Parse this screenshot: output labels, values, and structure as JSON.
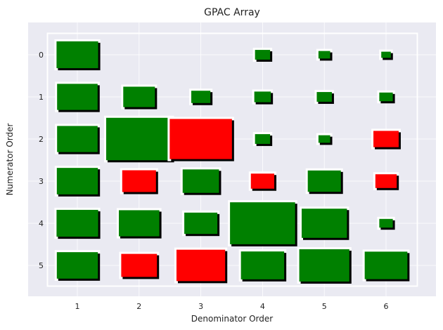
{
  "chart_data": {
    "type": "heatmap",
    "title": "GPAC Array",
    "xlabel": "Denominator Order",
    "ylabel": "Numerator Order",
    "x_ticks": [
      1,
      2,
      3,
      4,
      5,
      6
    ],
    "y_ticks": [
      0,
      1,
      2,
      3,
      4,
      5
    ],
    "grid": true,
    "colors": {
      "positive": "#008000",
      "negative": "#ff0000",
      "background": "#eaeaf2",
      "frame": "#ffffff",
      "shadow": "#000000"
    },
    "cells": [
      {
        "num": 0,
        "den": 1,
        "value": 0.38
      },
      {
        "num": 0,
        "den": 4,
        "value": 0.05
      },
      {
        "num": 0,
        "den": 5,
        "value": 0.03
      },
      {
        "num": 0,
        "den": 6,
        "value": 0.02
      },
      {
        "num": 1,
        "den": 1,
        "value": 0.36
      },
      {
        "num": 1,
        "den": 2,
        "value": 0.22
      },
      {
        "num": 1,
        "den": 3,
        "value": 0.08
      },
      {
        "num": 1,
        "den": 4,
        "value": 0.06
      },
      {
        "num": 1,
        "den": 5,
        "value": 0.05
      },
      {
        "num": 1,
        "den": 6,
        "value": 0.04
      },
      {
        "num": 2,
        "den": 1,
        "value": 0.36
      },
      {
        "num": 2,
        "den": 2,
        "value": 0.95
      },
      {
        "num": 2,
        "den": 3,
        "value": -0.85
      },
      {
        "num": 2,
        "den": 4,
        "value": 0.05
      },
      {
        "num": 2,
        "den": 5,
        "value": 0.03
      },
      {
        "num": 2,
        "den": 6,
        "value": -0.14
      },
      {
        "num": 3,
        "den": 1,
        "value": 0.37
      },
      {
        "num": 3,
        "den": 2,
        "value": -0.25
      },
      {
        "num": 3,
        "den": 3,
        "value": 0.29
      },
      {
        "num": 3,
        "den": 4,
        "value": -0.12
      },
      {
        "num": 3,
        "den": 5,
        "value": 0.24
      },
      {
        "num": 3,
        "den": 6,
        "value": -0.1
      },
      {
        "num": 4,
        "den": 1,
        "value": 0.38
      },
      {
        "num": 4,
        "den": 2,
        "value": 0.36
      },
      {
        "num": 4,
        "den": 3,
        "value": 0.24
      },
      {
        "num": 4,
        "den": 4,
        "value": 0.93
      },
      {
        "num": 4,
        "den": 5,
        "value": 0.45
      },
      {
        "num": 4,
        "den": 6,
        "value": 0.04
      },
      {
        "num": 5,
        "den": 1,
        "value": 0.37
      },
      {
        "num": 5,
        "den": 2,
        "value": -0.28
      },
      {
        "num": 5,
        "den": 3,
        "value": -0.52
      },
      {
        "num": 5,
        "den": 4,
        "value": 0.41
      },
      {
        "num": 5,
        "den": 5,
        "value": 0.55
      },
      {
        "num": 5,
        "den": 6,
        "value": 0.4
      }
    ]
  }
}
